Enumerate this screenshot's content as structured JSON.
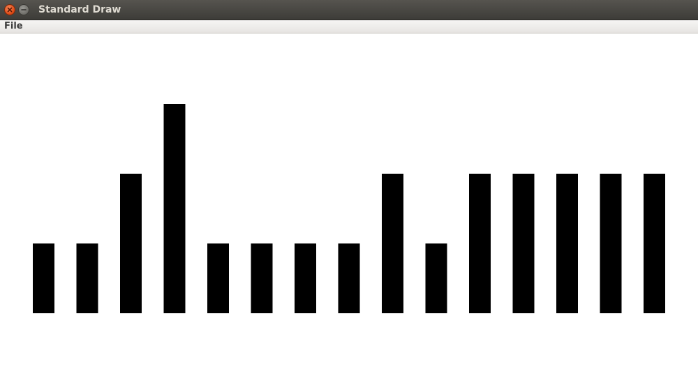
{
  "window": {
    "title": "Standard Draw",
    "close_icon": "close-icon",
    "minimize_icon": "minimize-icon"
  },
  "menu": {
    "items": [
      {
        "label": "File"
      }
    ]
  },
  "colors": {
    "bar": "#000000",
    "canvas": "#ffffff",
    "close_button": "#e0501c"
  },
  "chart_data": {
    "type": "bar",
    "values": [
      1,
      1,
      2,
      3,
      1,
      1,
      1,
      1,
      2,
      1,
      2,
      2,
      2,
      2,
      2
    ],
    "ylim": [
      0,
      4
    ],
    "grid": false
  }
}
